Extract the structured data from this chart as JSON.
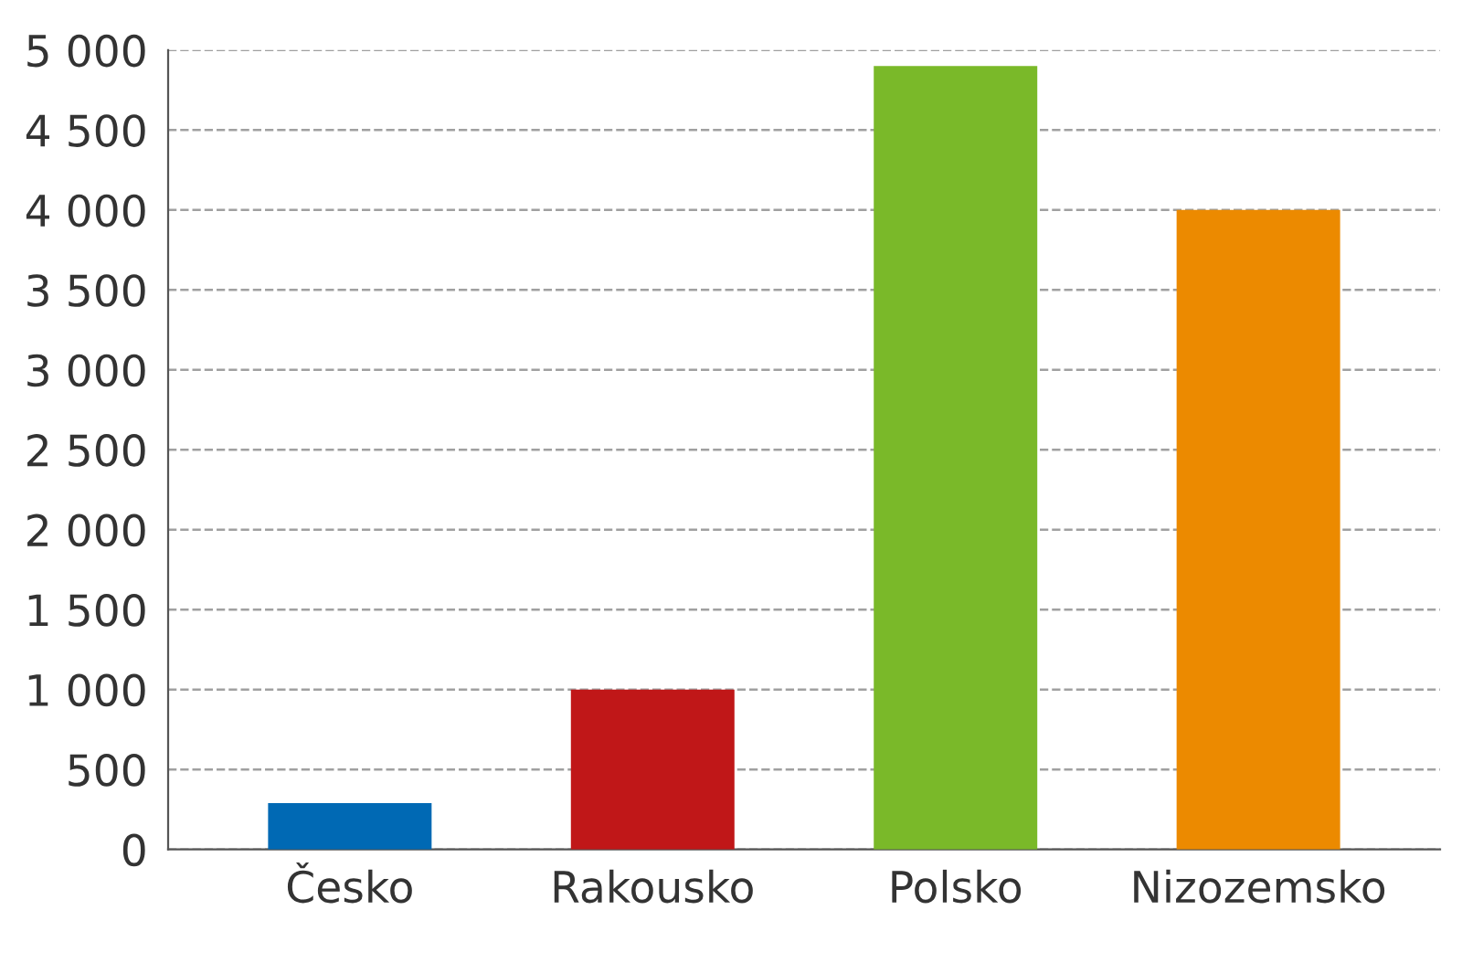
{
  "chart_data": {
    "type": "bar",
    "categories": [
      "Česko",
      "Rakousko",
      "Polsko",
      "Nizozemsko"
    ],
    "values": [
      290,
      1000,
      4900,
      4000
    ],
    "colors": [
      "#0069b4",
      "#c01718",
      "#7ab929",
      "#ec8a00"
    ],
    "ylim": [
      0,
      5000
    ],
    "yticks": [
      0,
      500,
      {
        "value": 1000,
        "label": "1 000"
      },
      {
        "value": 1500,
        "label": "1 500"
      },
      {
        "value": 2000,
        "label": "2 000"
      },
      {
        "value": 2500,
        "label": "2 500"
      },
      {
        "value": 3000,
        "label": "3 000"
      },
      {
        "value": 3500,
        "label": "3 500"
      },
      {
        "value": 4000,
        "label": "4 000"
      },
      {
        "value": 4500,
        "label": "4 500"
      },
      {
        "value": 5000,
        "label": "5 000"
      }
    ],
    "grid": "y",
    "line_style": "dashed",
    "legend": false
  }
}
